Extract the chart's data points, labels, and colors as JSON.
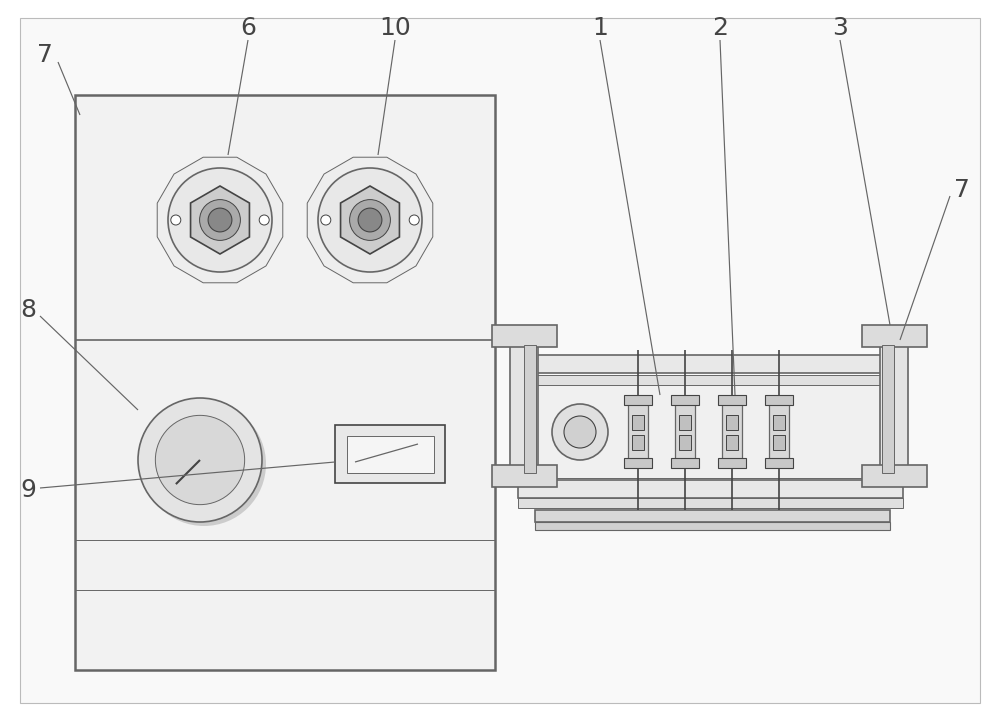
{
  "bg_color": "#ffffff",
  "line_color": "#666666",
  "dark_line": "#444444",
  "light_line": "#aaaaaa",
  "fig_width": 10.0,
  "fig_height": 7.21,
  "label_fontsize": 18
}
